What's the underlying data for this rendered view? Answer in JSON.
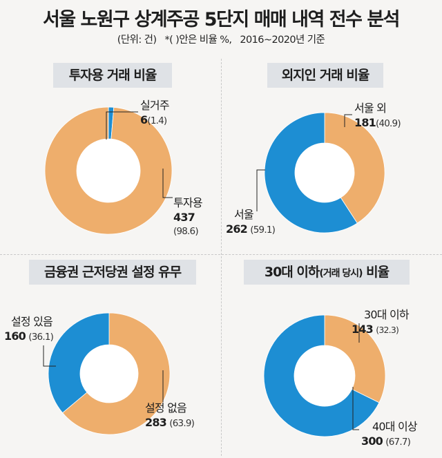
{
  "title": "서울 노원구 상계주공 5단지 매매 내역 전수 분석",
  "subtitle": "(단위: 건)   *( )안은 비율 %,   2016~2020년 기준",
  "colors": {
    "blue": "#1d8ed3",
    "orange": "#eeae6c",
    "hole": "#ffffff",
    "leader": "#222222",
    "title_bg": "#dfe2e6"
  },
  "chart_data": [
    {
      "type": "pie",
      "title": "투자용 거래 비율",
      "slices": [
        {
          "label": "실거주",
          "value": 6,
          "percent": "1.4",
          "color": "#1d8ed3"
        },
        {
          "label": "투자용",
          "value": 437,
          "percent": "98.6",
          "color": "#eeae6c"
        }
      ]
    },
    {
      "type": "pie",
      "title": "외지인 거래 비율",
      "slices": [
        {
          "label": "서울 외",
          "value": 181,
          "percent": "40.9",
          "color": "#eeae6c"
        },
        {
          "label": "서울",
          "value": 262,
          "percent": "59.1",
          "color": "#1d8ed3"
        }
      ]
    },
    {
      "type": "pie",
      "title": "금융권 근저당권 설정 유무",
      "slices": [
        {
          "label": "설정 없음",
          "value": 283,
          "percent": "63.9",
          "color": "#eeae6c"
        },
        {
          "label": "설정 있음",
          "value": 160,
          "percent": "36.1",
          "color": "#1d8ed3"
        }
      ]
    },
    {
      "type": "pie",
      "title": "30대 이하",
      "title_small": "(거래 당시)",
      "title_tail": " 비율",
      "slices": [
        {
          "label": "30대 이하",
          "value": 143,
          "percent": "32.3",
          "color": "#eeae6c"
        },
        {
          "label": "40대 이상",
          "value": 300,
          "percent": "67.7",
          "color": "#1d8ed3"
        }
      ]
    }
  ]
}
